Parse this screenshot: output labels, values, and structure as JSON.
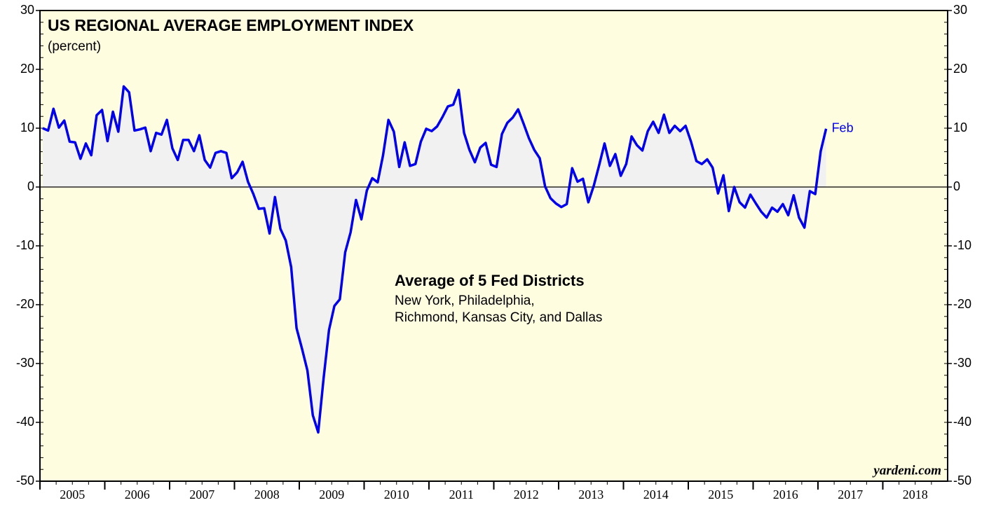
{
  "chart_data": {
    "type": "line",
    "title": "US REGIONAL AVERAGE EMPLOYMENT INDEX",
    "subtitle": "(percent)",
    "annotations": [
      "Average of 5 Fed Districts",
      "New York, Philadelphia,",
      "Richmond, Kansas City, and Dallas",
      "Feb",
      "yardeni.com"
    ],
    "x": [
      "2005-01",
      "2005-02",
      "2005-03",
      "2005-04",
      "2005-05",
      "2005-06",
      "2005-07",
      "2005-08",
      "2005-09",
      "2005-10",
      "2005-11",
      "2005-12",
      "2006-01",
      "2006-02",
      "2006-03",
      "2006-04",
      "2006-05",
      "2006-06",
      "2006-07",
      "2006-08",
      "2006-09",
      "2006-10",
      "2006-11",
      "2006-12",
      "2007-01",
      "2007-02",
      "2007-03",
      "2007-04",
      "2007-05",
      "2007-06",
      "2007-07",
      "2007-08",
      "2007-09",
      "2007-10",
      "2007-11",
      "2007-12",
      "2008-01",
      "2008-02",
      "2008-03",
      "2008-04",
      "2008-05",
      "2008-06",
      "2008-07",
      "2008-08",
      "2008-09",
      "2008-10",
      "2008-11",
      "2008-12",
      "2009-01",
      "2009-02",
      "2009-03",
      "2009-04",
      "2009-05",
      "2009-06",
      "2009-07",
      "2009-08",
      "2009-09",
      "2009-10",
      "2009-11",
      "2009-12",
      "2010-01",
      "2010-02",
      "2010-03",
      "2010-04",
      "2010-05",
      "2010-06",
      "2010-07",
      "2010-08",
      "2010-09",
      "2010-10",
      "2010-11",
      "2010-12",
      "2011-01",
      "2011-02",
      "2011-03",
      "2011-04",
      "2011-05",
      "2011-06",
      "2011-07",
      "2011-08",
      "2011-09",
      "2011-10",
      "2011-11",
      "2011-12",
      "2012-01",
      "2012-02",
      "2012-03",
      "2012-04",
      "2012-05",
      "2012-06",
      "2012-07",
      "2012-08",
      "2012-09",
      "2012-10",
      "2012-11",
      "2012-12",
      "2013-01",
      "2013-02",
      "2013-03",
      "2013-04",
      "2013-05",
      "2013-06",
      "2013-07",
      "2013-08",
      "2013-09",
      "2013-10",
      "2013-11",
      "2013-12",
      "2014-01",
      "2014-02",
      "2014-03",
      "2014-04",
      "2014-05",
      "2014-06",
      "2014-07",
      "2014-08",
      "2014-09",
      "2014-10",
      "2014-11",
      "2014-12",
      "2015-01",
      "2015-02",
      "2015-03",
      "2015-04",
      "2015-05",
      "2015-06",
      "2015-07",
      "2015-08",
      "2015-09",
      "2015-10",
      "2015-11",
      "2015-12",
      "2016-01",
      "2016-02",
      "2016-03",
      "2016-04",
      "2016-05",
      "2016-06",
      "2016-07",
      "2016-08",
      "2016-09",
      "2016-10",
      "2016-11",
      "2016-12",
      "2017-01",
      "2017-02"
    ],
    "series": [
      {
        "name": "Average of 5 Fed Districts",
        "color": "#0000ee",
        "values": [
          10.0,
          9.6,
          13.3,
          10.1,
          11.3,
          7.7,
          7.6,
          4.8,
          7.4,
          5.4,
          12.2,
          13.1,
          7.8,
          12.8,
          9.4,
          17.1,
          16.1,
          9.6,
          9.8,
          10.1,
          6.1,
          9.2,
          8.9,
          11.4,
          6.6,
          4.6,
          8.0,
          8.0,
          6.1,
          8.8,
          4.6,
          3.3,
          5.8,
          6.1,
          5.8,
          1.5,
          2.5,
          4.3,
          0.9,
          -1.2,
          -3.7,
          -3.6,
          -7.9,
          -1.7,
          -7.1,
          -9.1,
          -13.6,
          -24.0,
          -27.5,
          -31.2,
          -38.8,
          -41.7,
          -32.5,
          -24.3,
          -20.2,
          -19.1,
          -11.1,
          -7.7,
          -2.2,
          -5.5,
          -0.6,
          1.5,
          0.8,
          5.4,
          11.4,
          9.4,
          3.4,
          7.6,
          3.6,
          3.9,
          7.7,
          9.9,
          9.5,
          10.3,
          11.9,
          13.7,
          14.0,
          16.5,
          9.2,
          6.3,
          4.2,
          6.7,
          7.5,
          3.8,
          3.4,
          9.0,
          10.9,
          11.8,
          13.2,
          10.8,
          8.3,
          6.3,
          4.9,
          0.1,
          -1.9,
          -2.8,
          -3.4,
          -2.9,
          3.2,
          0.9,
          1.4,
          -2.6,
          0.2,
          3.7,
          7.4,
          3.6,
          5.6,
          1.9,
          3.9,
          8.6,
          7.1,
          6.2,
          9.5,
          11.1,
          9.2,
          12.3,
          9.2,
          10.4,
          9.5,
          10.4,
          7.7,
          4.4,
          3.9,
          4.7,
          3.3,
          -1.1,
          2.0,
          -4.1,
          0.0,
          -2.6,
          -3.5,
          -1.3,
          -2.8,
          -4.2,
          -5.2,
          -3.5,
          -4.2,
          -2.9,
          -4.8,
          -1.4,
          -5.2,
          -6.9,
          -0.7,
          -1.2,
          6.1,
          9.9
        ]
      }
    ],
    "xlim": [
      2005,
      2019
    ],
    "xticks": [
      2005,
      2006,
      2007,
      2008,
      2009,
      2010,
      2011,
      2012,
      2013,
      2014,
      2015,
      2016,
      2017,
      2018
    ],
    "ylim": [
      -50,
      30
    ],
    "yticks": [
      -50,
      -40,
      -30,
      -20,
      -10,
      0,
      10,
      20,
      30
    ],
    "background": "#fffde0",
    "fill_color": "#f1f1f1"
  }
}
